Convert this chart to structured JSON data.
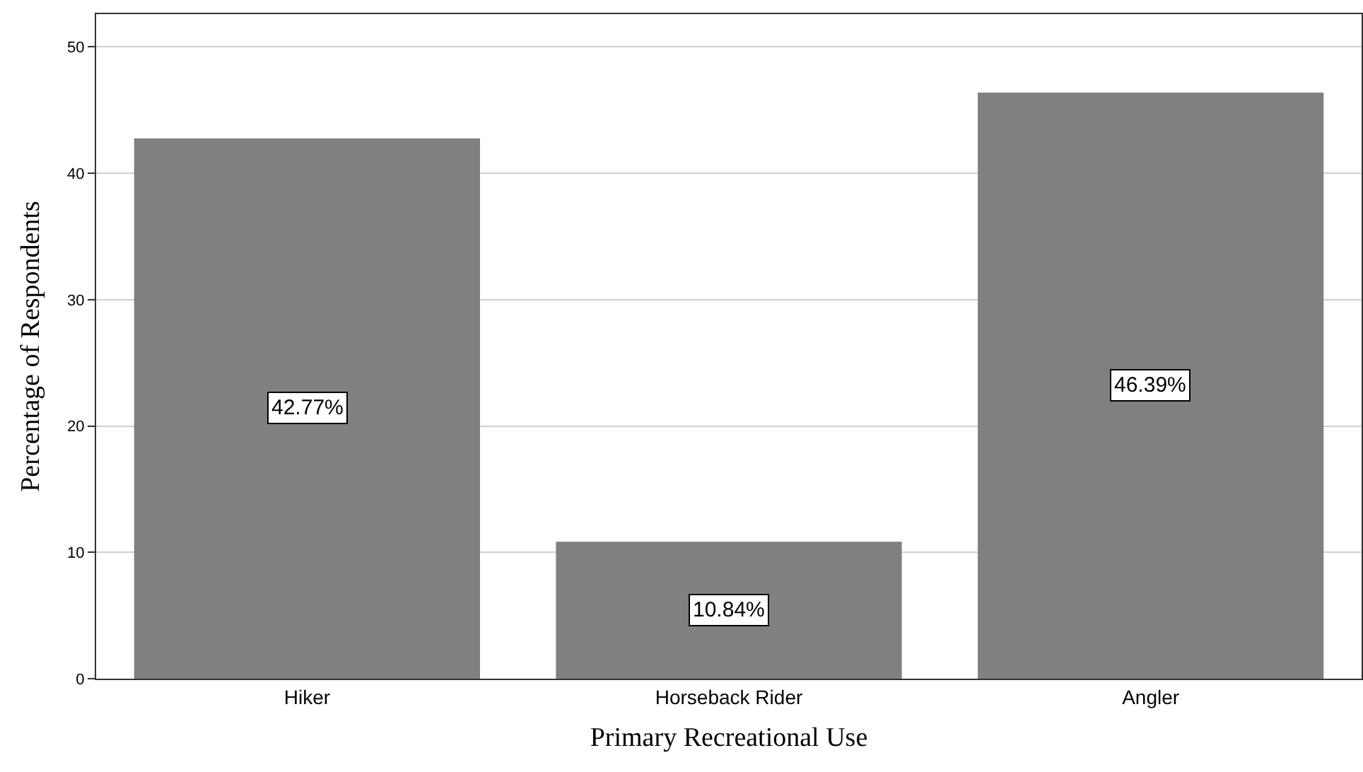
{
  "chart_data": {
    "type": "bar",
    "xlabel": "Primary Recreational Use",
    "ylabel": "Percentage of Respondents",
    "categories": [
      "Hiker",
      "Horseback Rider",
      "Angler"
    ],
    "values": [
      42.77,
      10.84,
      46.39
    ],
    "color": "#808080",
    "value_labels": [
      "42.77%",
      "10.84%",
      "46.39%"
    ],
    "ylim": [
      0,
      52.6
    ],
    "yticks": [
      0,
      10,
      20,
      30,
      40,
      50
    ],
    "grid": "y"
  }
}
